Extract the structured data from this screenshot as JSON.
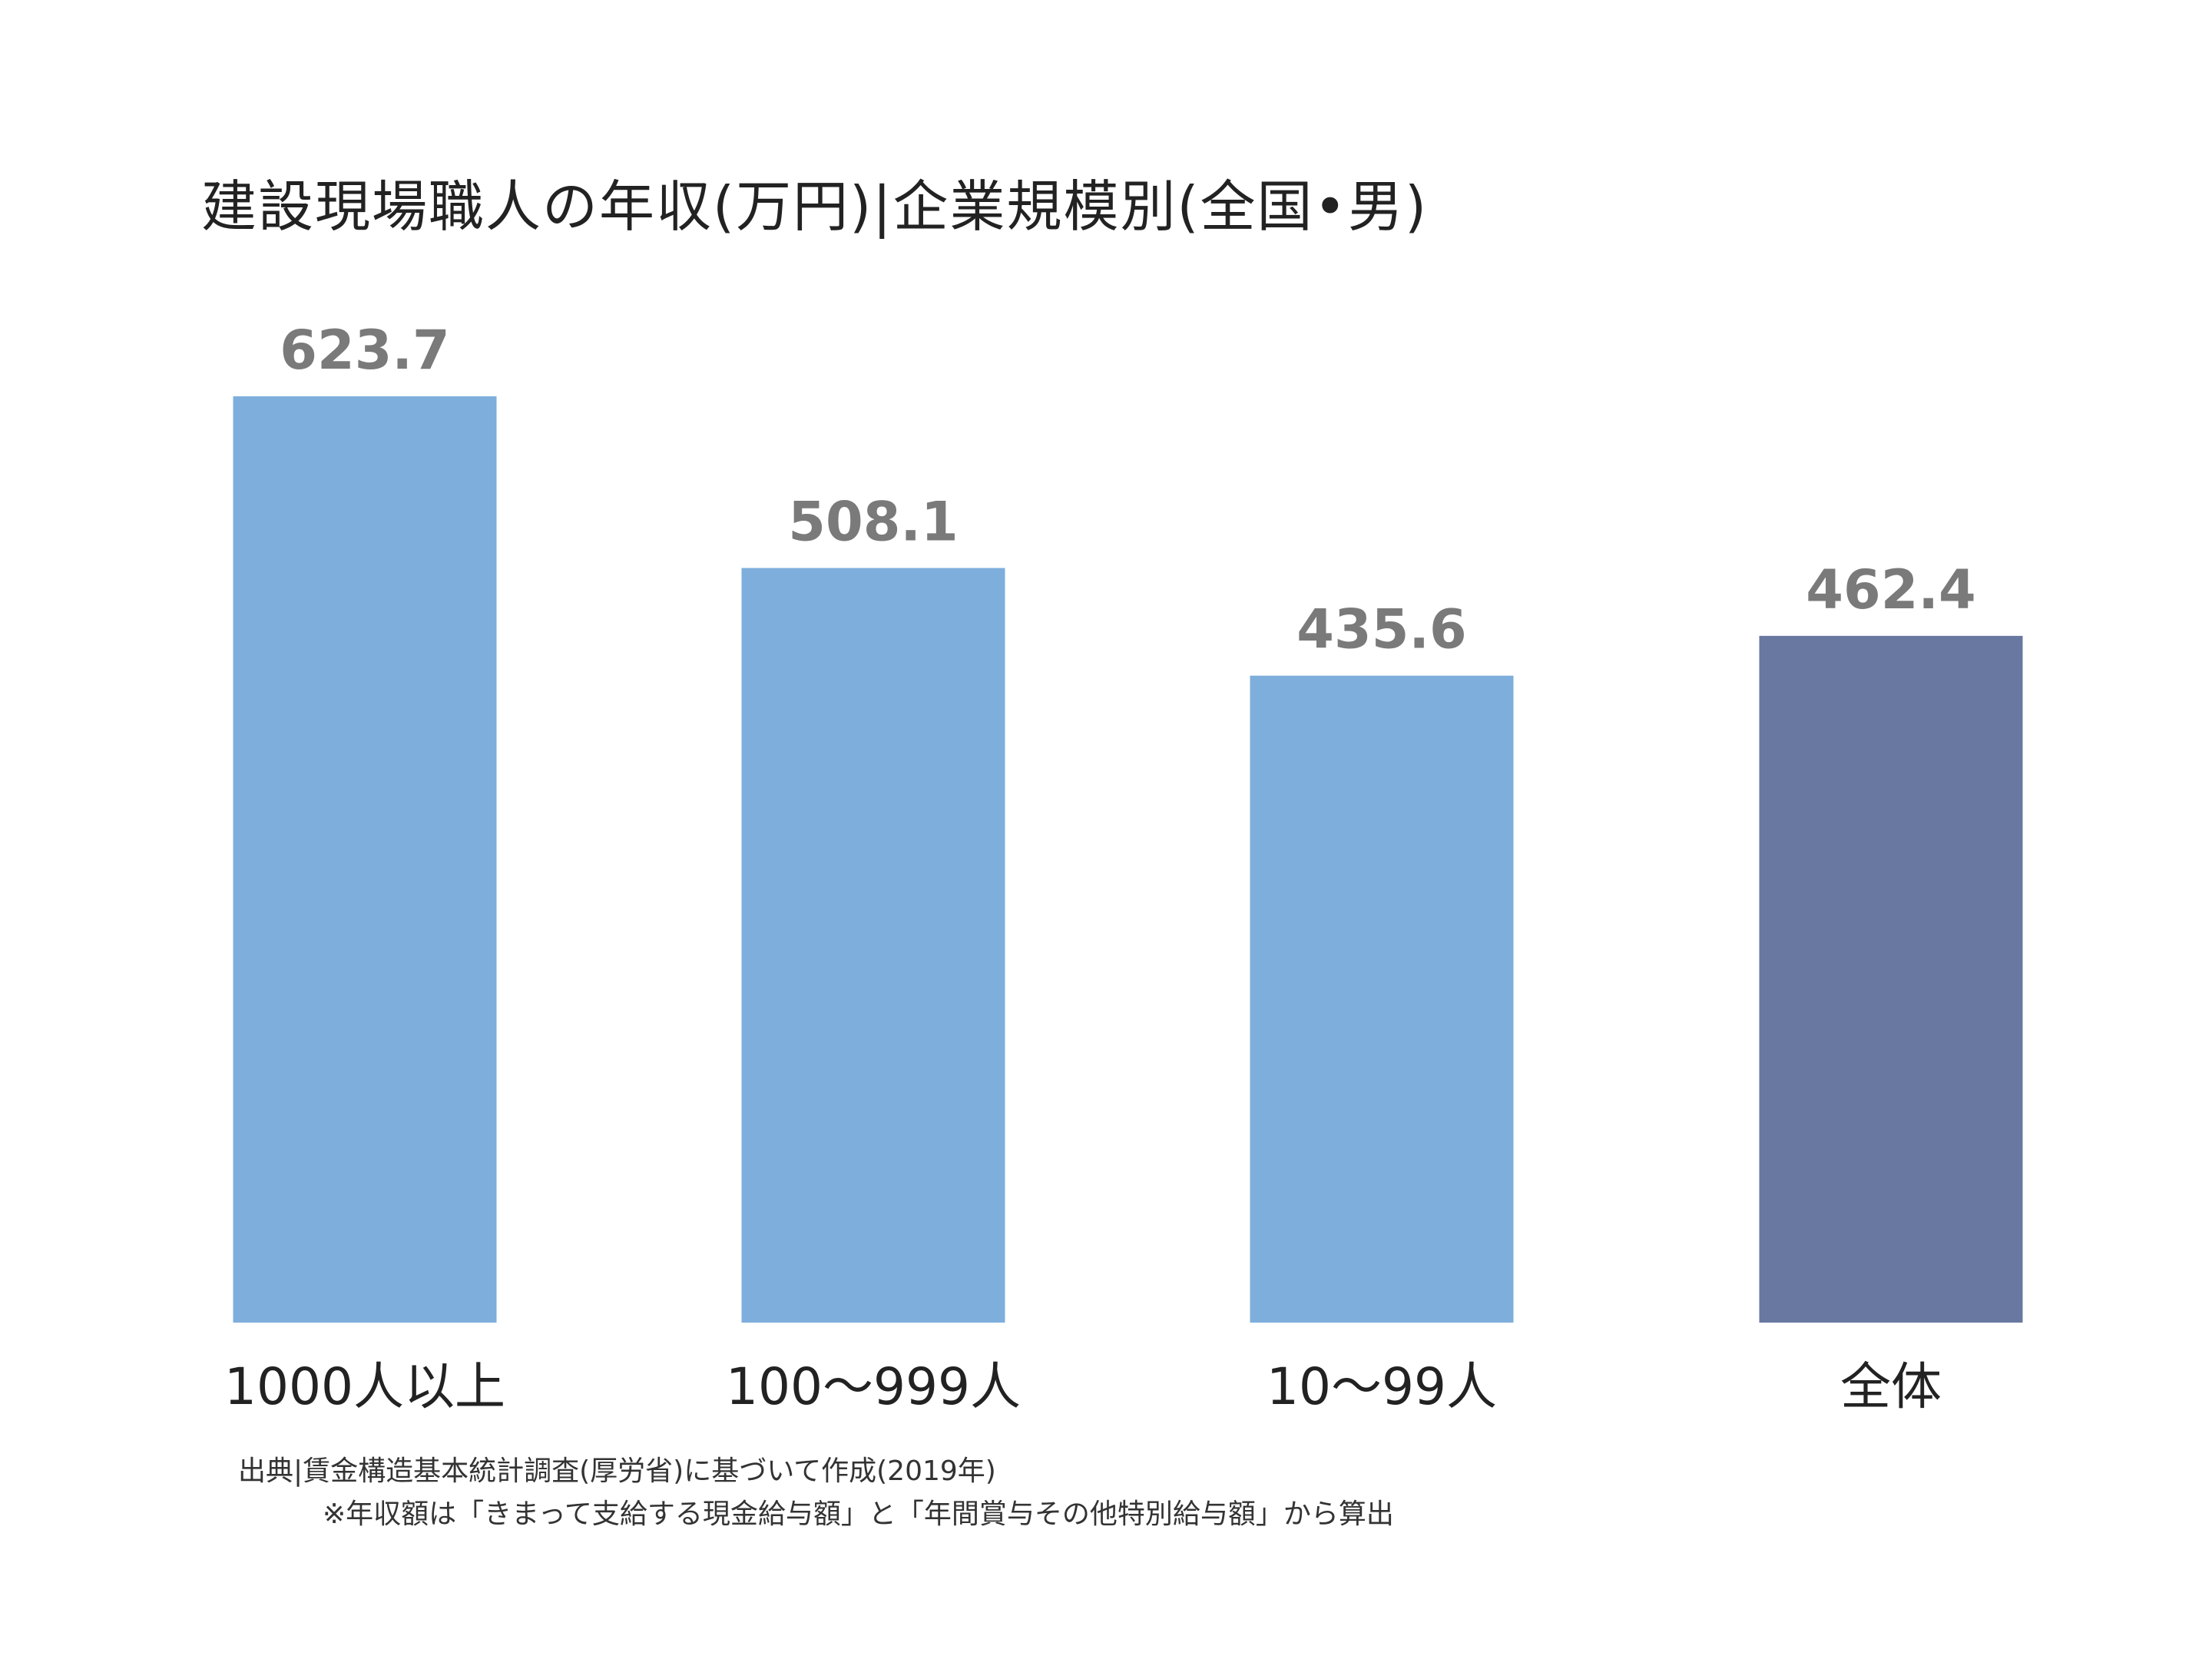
{
  "chart_data": {
    "type": "bar",
    "title": "建設現場職人の年収(万円)|企業規模別(全国•男)",
    "xlabel": "",
    "ylabel": "",
    "categories": [
      "1000人以上",
      "100〜999人",
      "10〜99人",
      "全体"
    ],
    "values": [
      623.7,
      508.1,
      435.6,
      462.4
    ],
    "value_labels": [
      "623.7",
      "508.1",
      "435.6",
      "462.4"
    ],
    "ylim": [
      0,
      623.7
    ],
    "grid": false,
    "legend": "none",
    "colors": {
      "bar": "#7eaedc",
      "highlight": "#6878a0",
      "highlight_category": "全体"
    }
  },
  "source": {
    "line1": "出典|賃金構造基本統計調査(厚労省)に基づいて作成(2019年)",
    "line2": "※年収額は「きまって支給する現金給与額」と「年間賞与その他特別給与額」から算出"
  }
}
